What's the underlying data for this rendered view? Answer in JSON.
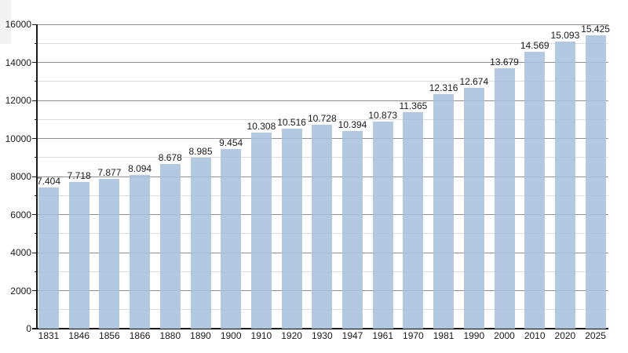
{
  "chart_data": {
    "type": "bar",
    "title": "",
    "xlabel": "",
    "ylabel": "",
    "categories": [
      "1831",
      "1846",
      "1856",
      "1866",
      "1880",
      "1890",
      "1900",
      "1910",
      "1920",
      "1930",
      "1947",
      "1961",
      "1970",
      "1981",
      "1990",
      "2000",
      "2010",
      "2020",
      "2025"
    ],
    "values": [
      7404,
      7718,
      7877,
      8094,
      8678,
      8985,
      9454,
      10308,
      10516,
      10728,
      10394,
      10873,
      11365,
      12316,
      12674,
      13679,
      14569,
      15093,
      15425
    ],
    "bar_value_labels": [
      "7.404",
      "7.718",
      "7.877",
      "8.094",
      "8.678",
      "8.985",
      "9.454",
      "10.308",
      "10.516",
      "10.728",
      "10.394",
      "10.873",
      "11.365",
      "12.316",
      "12.674",
      "13.679",
      "14.569",
      "15.093",
      "15.425"
    ],
    "ylim": [
      0,
      16000
    ],
    "y_major_step": 2000,
    "y_minor_step": 1000,
    "y_tick_labels": [
      "0",
      "2000",
      "4000",
      "6000",
      "8000",
      "10000",
      "12000",
      "14000",
      "16000"
    ],
    "grid": "on",
    "legend": "none",
    "colors": {
      "bar_fill": "rgba(169,194,222,0.88)",
      "major_gridline": "#8f8f8f",
      "minor_gridline": "#dcdcdc",
      "axis": "#1a1a1a",
      "text": "#1a1a1a",
      "background": "#ffffff"
    }
  }
}
